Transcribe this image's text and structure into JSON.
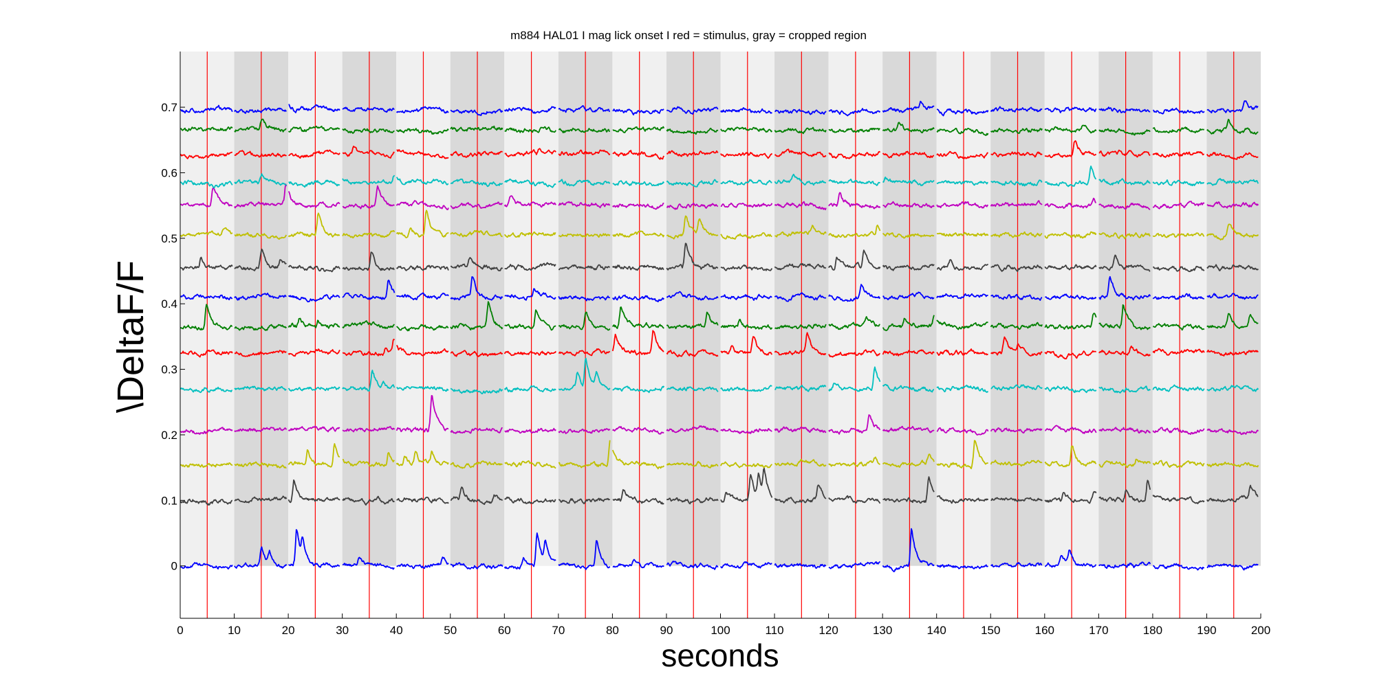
{
  "chart_data": {
    "type": "line",
    "title": "m884 HAL01 I mag lick  onset I red = stimulus, gray = cropped region",
    "xlabel": "seconds",
    "ylabel": "\\DeltaF/F",
    "xlim": [
      0,
      200
    ],
    "ylim": [
      -0.08,
      0.785
    ],
    "x_ticks": [
      "0",
      "10",
      "20",
      "30",
      "40",
      "50",
      "60",
      "70",
      "80",
      "90",
      "100",
      "110",
      "120",
      "130",
      "140",
      "150",
      "160",
      "170",
      "180",
      "190",
      "200"
    ],
    "y_ticks": [
      {
        "value": 0,
        "label": "0"
      },
      {
        "value": 0.1,
        "label": "0.1"
      },
      {
        "value": 0.2,
        "label": "0.2"
      },
      {
        "value": 0.3,
        "label": "0.3"
      },
      {
        "value": 0.4,
        "label": "0.4"
      },
      {
        "value": 0.5,
        "label": "0.5"
      },
      {
        "value": 0.6,
        "label": "0.6"
      },
      {
        "value": 0.7,
        "label": "0.7"
      }
    ],
    "trial_duration_s": 10,
    "stimulus_offset_s": 5,
    "stimulus_times": [
      5,
      15,
      25,
      35,
      45,
      55,
      65,
      75,
      85,
      95,
      105,
      115,
      125,
      135,
      145,
      155,
      165,
      175,
      185,
      195
    ],
    "stimulus_color": "#ff0000",
    "trial_shades": [
      "#f0f0f0",
      "#d9d9d9",
      "#f0f0f0",
      "#d9d9d9",
      "#f0f0f0",
      "#d9d9d9",
      "#f0f0f0",
      "#d9d9d9",
      "#f0f0f0",
      "#d9d9d9",
      "#f0f0f0",
      "#d9d9d9",
      "#f0f0f0",
      "#d9d9d9",
      "#f0f0f0",
      "#d9d9d9",
      "#f0f0f0",
      "#d9d9d9",
      "#f0f0f0",
      "#d9d9d9"
    ],
    "series": [
      {
        "color": "#0000ff",
        "baseline": 0.0,
        "events": [
          [
            15,
            0.03
          ],
          [
            16.5,
            0.02
          ],
          [
            21.5,
            0.07
          ],
          [
            22.6,
            0.04
          ],
          [
            33,
            0.015
          ],
          [
            48.5,
            0.015
          ],
          [
            63.5,
            0.015
          ],
          [
            66,
            0.065
          ],
          [
            67.5,
            0.04
          ],
          [
            77,
            0.05
          ],
          [
            84,
            0.01
          ],
          [
            135.3,
            0.07
          ],
          [
            163,
            0.015
          ],
          [
            164.5,
            0.025
          ]
        ]
      },
      {
        "color": "#404040",
        "baseline": 0.1,
        "events": [
          [
            21,
            0.04
          ],
          [
            52,
            0.025
          ],
          [
            58,
            0.015
          ],
          [
            82,
            0.02
          ],
          [
            101,
            0.015
          ],
          [
            105.5,
            0.045
          ],
          [
            107,
            0.04
          ],
          [
            108,
            0.045
          ],
          [
            118,
            0.03
          ],
          [
            138.5,
            0.045
          ],
          [
            163.5,
            0.015
          ],
          [
            169,
            0.015
          ],
          [
            175,
            0.02
          ],
          [
            179,
            0.04
          ],
          [
            198,
            0.025
          ]
        ]
      },
      {
        "color": "#bfbf00",
        "baseline": 0.155,
        "events": [
          [
            23.5,
            0.03
          ],
          [
            28.5,
            0.045
          ],
          [
            38.5,
            0.025
          ],
          [
            41.5,
            0.02
          ],
          [
            43.5,
            0.025
          ],
          [
            46.5,
            0.02
          ],
          [
            79.5,
            0.045
          ],
          [
            128.5,
            0.015
          ],
          [
            138.5,
            0.015
          ],
          [
            147,
            0.05
          ],
          [
            165,
            0.04
          ],
          [
            177,
            0.01
          ]
        ]
      },
      {
        "color": "#bf00bf",
        "baseline": 0.207,
        "events": [
          [
            46.5,
            0.065
          ],
          [
            127.5,
            0.03
          ]
        ]
      },
      {
        "color": "#00bfbf",
        "baseline": 0.27,
        "events": [
          [
            35.5,
            0.035
          ],
          [
            37.5,
            0.015
          ],
          [
            73.5,
            0.025
          ],
          [
            75,
            0.05
          ],
          [
            77,
            0.025
          ],
          [
            128.5,
            0.04
          ],
          [
            121,
            0.01
          ]
        ]
      },
      {
        "color": "#ff0000",
        "baseline": 0.325,
        "events": [
          [
            38,
            0.015
          ],
          [
            39.5,
            0.025
          ],
          [
            80.5,
            0.035
          ],
          [
            87.5,
            0.04
          ],
          [
            102,
            0.015
          ],
          [
            106,
            0.035
          ],
          [
            116,
            0.035
          ],
          [
            152.5,
            0.03
          ],
          [
            155,
            0.015
          ],
          [
            176,
            0.015
          ]
        ]
      },
      {
        "color": "#007f00",
        "baseline": 0.365,
        "events": [
          [
            4.8,
            0.045
          ],
          [
            22,
            0.015
          ],
          [
            25.5,
            0.01
          ],
          [
            57,
            0.045
          ],
          [
            65.8,
            0.035
          ],
          [
            75,
            0.035
          ],
          [
            81.5,
            0.035
          ],
          [
            97.5,
            0.025
          ],
          [
            103.5,
            0.015
          ],
          [
            127,
            0.015
          ],
          [
            134,
            0.015
          ],
          [
            139.5,
            0.02
          ],
          [
            169,
            0.02
          ],
          [
            174.5,
            0.045
          ],
          [
            194,
            0.02
          ],
          [
            198,
            0.02
          ]
        ]
      },
      {
        "color": "#0000ff",
        "baseline": 0.41,
        "events": [
          [
            38.5,
            0.035
          ],
          [
            54,
            0.04
          ],
          [
            65.5,
            0.015
          ],
          [
            126,
            0.02
          ],
          [
            172,
            0.04
          ]
        ]
      },
      {
        "color": "#404040",
        "baseline": 0.455,
        "events": [
          [
            3.8,
            0.025
          ],
          [
            15,
            0.035
          ],
          [
            18.5,
            0.015
          ],
          [
            35.3,
            0.03
          ],
          [
            53.5,
            0.015
          ],
          [
            93.5,
            0.04
          ],
          [
            121.5,
            0.025
          ],
          [
            126.5,
            0.035
          ],
          [
            142.5,
            0.015
          ],
          [
            173,
            0.02
          ]
        ]
      },
      {
        "color": "#bfbf00",
        "baseline": 0.505,
        "events": [
          [
            8,
            0.015
          ],
          [
            25.5,
            0.04
          ],
          [
            42.5,
            0.015
          ],
          [
            45.5,
            0.05
          ],
          [
            93.5,
            0.035
          ],
          [
            96,
            0.03
          ],
          [
            117,
            0.015
          ],
          [
            129,
            0.015
          ],
          [
            194,
            0.02
          ]
        ]
      },
      {
        "color": "#bf00bf",
        "baseline": 0.55,
        "events": [
          [
            6,
            0.035
          ],
          [
            19.5,
            0.04
          ],
          [
            36.5,
            0.035
          ],
          [
            61,
            0.015
          ],
          [
            122,
            0.025
          ],
          [
            169,
            0.01
          ]
        ]
      },
      {
        "color": "#00bfbf",
        "baseline": 0.585,
        "events": [
          [
            15,
            0.015
          ],
          [
            30,
            0.01
          ],
          [
            39.5,
            0.015
          ],
          [
            113.5,
            0.01
          ],
          [
            130.5,
            0.01
          ],
          [
            168.5,
            0.035
          ]
        ]
      },
      {
        "color": "#ff0000",
        "baseline": 0.628,
        "events": [
          [
            32,
            0.01
          ],
          [
            40,
            0.01
          ],
          [
            66.5,
            0.01
          ],
          [
            165.5,
            0.03
          ]
        ]
      },
      {
        "color": "#007f00",
        "baseline": 0.665,
        "events": [
          [
            15,
            0.015
          ],
          [
            21,
            0.01
          ],
          [
            133,
            0.015
          ],
          [
            167,
            0.01
          ],
          [
            194,
            0.02
          ]
        ]
      },
      {
        "color": "#0000ff",
        "baseline": 0.695,
        "events": [
          [
            20,
            0.01
          ],
          [
            70,
            0.005
          ],
          [
            137,
            0.01
          ],
          [
            164,
            0.01
          ],
          [
            197,
            0.015
          ]
        ]
      }
    ]
  }
}
